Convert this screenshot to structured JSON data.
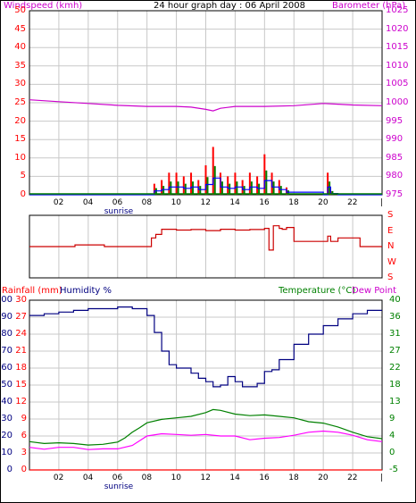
{
  "title": "24 hour graph day : 06 April 2008",
  "top": {
    "left_label": "Windspeed (kmh)",
    "right_label": "Barometer (hPa)",
    "wind_ticks": [
      "50",
      "45",
      "40",
      "35",
      "30",
      "25",
      "20",
      "15",
      "10",
      "5",
      "0"
    ],
    "baro_ticks": [
      "1025",
      "1020",
      "1015",
      "1010",
      "1005",
      "1000",
      "995",
      "990",
      "985",
      "980",
      "975"
    ]
  },
  "mid": {
    "dir_ticks": [
      "S",
      "E",
      "N",
      "W",
      "S"
    ]
  },
  "bottom": {
    "rain_label": "Rainfall (mm)",
    "hum_label": "Humidity %",
    "temp_label": "Temperature (°C)",
    "dew_label": "Dew Point",
    "hum_ticks": [
      "100",
      "90",
      "80",
      "70",
      "60",
      "50",
      "40",
      "30",
      "20",
      "10",
      "0"
    ],
    "rain_ticks": [
      "30",
      "27",
      "24",
      "21",
      "18",
      "15",
      "12",
      "9",
      "6",
      "3",
      "0"
    ],
    "temp_ticks": [
      "40",
      "36",
      "31",
      "27",
      "22",
      "18",
      "13",
      "9",
      "4",
      "0",
      "-5"
    ]
  },
  "x_ticks": [
    "02",
    "04",
    "06",
    "08",
    "10",
    "12",
    "14",
    "16",
    "18",
    "20",
    "22",
    "|"
  ],
  "sunrise": "sunrise",
  "colors": {
    "wind": "#ff0000",
    "gust": "#008000",
    "wind_avg": "#0000ff",
    "barometer": "#cc00cc",
    "direction": "#cc0000",
    "humidity": "#000080",
    "temperature": "#008000",
    "dewpoint": "#ff00ff",
    "rain": "#ff0000",
    "grid": "#c8c8c8"
  },
  "chart_data": [
    {
      "type": "line",
      "series": [
        {
          "name": "Windspeed (kmh)",
          "x": [
            0,
            8,
            8.5,
            9,
            9.5,
            10,
            10.5,
            11,
            11.5,
            12,
            12.5,
            13,
            13.5,
            14,
            14.5,
            15,
            15.5,
            16,
            16.5,
            17,
            17.5,
            20,
            20.3,
            20.5,
            21,
            24
          ],
          "values": [
            0,
            0,
            3,
            4,
            6,
            6,
            5,
            6,
            4,
            8,
            13,
            6,
            5,
            6,
            4,
            6,
            5,
            11,
            6,
            4,
            2,
            0,
            6,
            1,
            0,
            0
          ]
        },
        {
          "name": "Barometer (hPa)",
          "x": [
            0,
            2,
            4,
            6,
            8,
            10,
            11,
            12,
            12.5,
            13,
            14,
            16,
            18,
            20,
            21,
            22,
            24
          ],
          "values": [
            1000.8,
            1000.3,
            999.8,
            999.3,
            999.0,
            999.0,
            998.8,
            998.2,
            997.8,
            998.5,
            999.0,
            999.0,
            999.2,
            999.8,
            999.6,
            999.4,
            999.2
          ]
        }
      ],
      "xlabel": "",
      "ylim_wind": [
        0,
        50
      ],
      "ylim_baro": [
        975,
        1025
      ],
      "grid": true
    },
    {
      "type": "line",
      "series": [
        {
          "name": "",
          "x": [
            0,
            0.2,
            3,
            3.1,
            5,
            5.1,
            8,
            8.3,
            8.6,
            9,
            10,
            11,
            12,
            13,
            14,
            15,
            16,
            16.3,
            16.6,
            17,
            17.2,
            17.5,
            18,
            19.5,
            20,
            20.3,
            20.5,
            21,
            22,
            22.5,
            24
          ],
          "values": [
            180,
            180,
            180,
            190,
            190,
            180,
            180,
            230,
            250,
            280,
            275,
            278,
            272,
            280,
            275,
            278,
            285,
            160,
            300,
            285,
            280,
            290,
            210,
            210,
            210,
            240,
            210,
            230,
            230,
            180,
            180
          ]
        }
      ],
      "ylim": [
        0,
        360
      ],
      "grid": true
    },
    {
      "type": "line",
      "series": [
        {
          "name": "Humidity %",
          "x": [
            0,
            1,
            2,
            3,
            4,
            5,
            6,
            7,
            8,
            8.5,
            9,
            9.5,
            10,
            11,
            11.5,
            12,
            12.5,
            13,
            13.5,
            14,
            14.5,
            15,
            15.5,
            16,
            16.5,
            17,
            18,
            19,
            20,
            21,
            22,
            23,
            24
          ],
          "values": [
            91,
            92,
            93,
            94,
            95,
            95,
            96,
            95,
            91,
            81,
            70,
            62,
            60,
            57,
            54,
            52,
            49,
            50,
            55,
            52,
            49,
            49,
            51,
            58,
            59,
            65,
            74,
            80,
            85,
            89,
            92,
            94,
            94
          ],
          "axis": "humidity"
        },
        {
          "name": "Temperature (°C)",
          "x": [
            0,
            1,
            2,
            3,
            4,
            5,
            6,
            6.5,
            7,
            7.5,
            8,
            9,
            10,
            11,
            12,
            12.5,
            13,
            14,
            15,
            16,
            17,
            18,
            19,
            20,
            21,
            22,
            23,
            24
          ],
          "values": [
            2.5,
            2.0,
            2.2,
            2.0,
            1.6,
            1.8,
            2.4,
            3.5,
            5.0,
            6.2,
            7.5,
            8.4,
            8.8,
            9.2,
            10.2,
            11.0,
            10.8,
            9.8,
            9.4,
            9.6,
            9.2,
            8.8,
            7.8,
            7.4,
            6.4,
            5.0,
            3.8,
            3.3
          ],
          "axis": "temperature"
        },
        {
          "name": "Dew Point",
          "x": [
            0,
            1,
            2,
            3,
            4,
            5,
            6,
            7,
            8,
            9,
            10,
            11,
            12,
            13,
            14,
            15,
            16,
            17,
            18,
            19,
            20,
            21,
            22,
            23,
            24
          ],
          "values": [
            1.0,
            0.5,
            1.0,
            1.0,
            0.4,
            0.6,
            0.6,
            1.5,
            4.0,
            4.6,
            4.4,
            4.2,
            4.4,
            4.0,
            4.0,
            3.0,
            3.4,
            3.6,
            4.2,
            5.0,
            5.3,
            5.0,
            4.2,
            3.0,
            2.5
          ],
          "axis": "temperature"
        },
        {
          "name": "Rainfall (mm)",
          "x": [
            0,
            24
          ],
          "values": [
            0,
            0
          ],
          "axis": "rain"
        }
      ],
      "ylim_humidity": [
        0,
        100
      ],
      "ylim_rain": [
        0,
        30
      ],
      "ylim_temp": [
        -5,
        40
      ],
      "grid": true
    }
  ]
}
